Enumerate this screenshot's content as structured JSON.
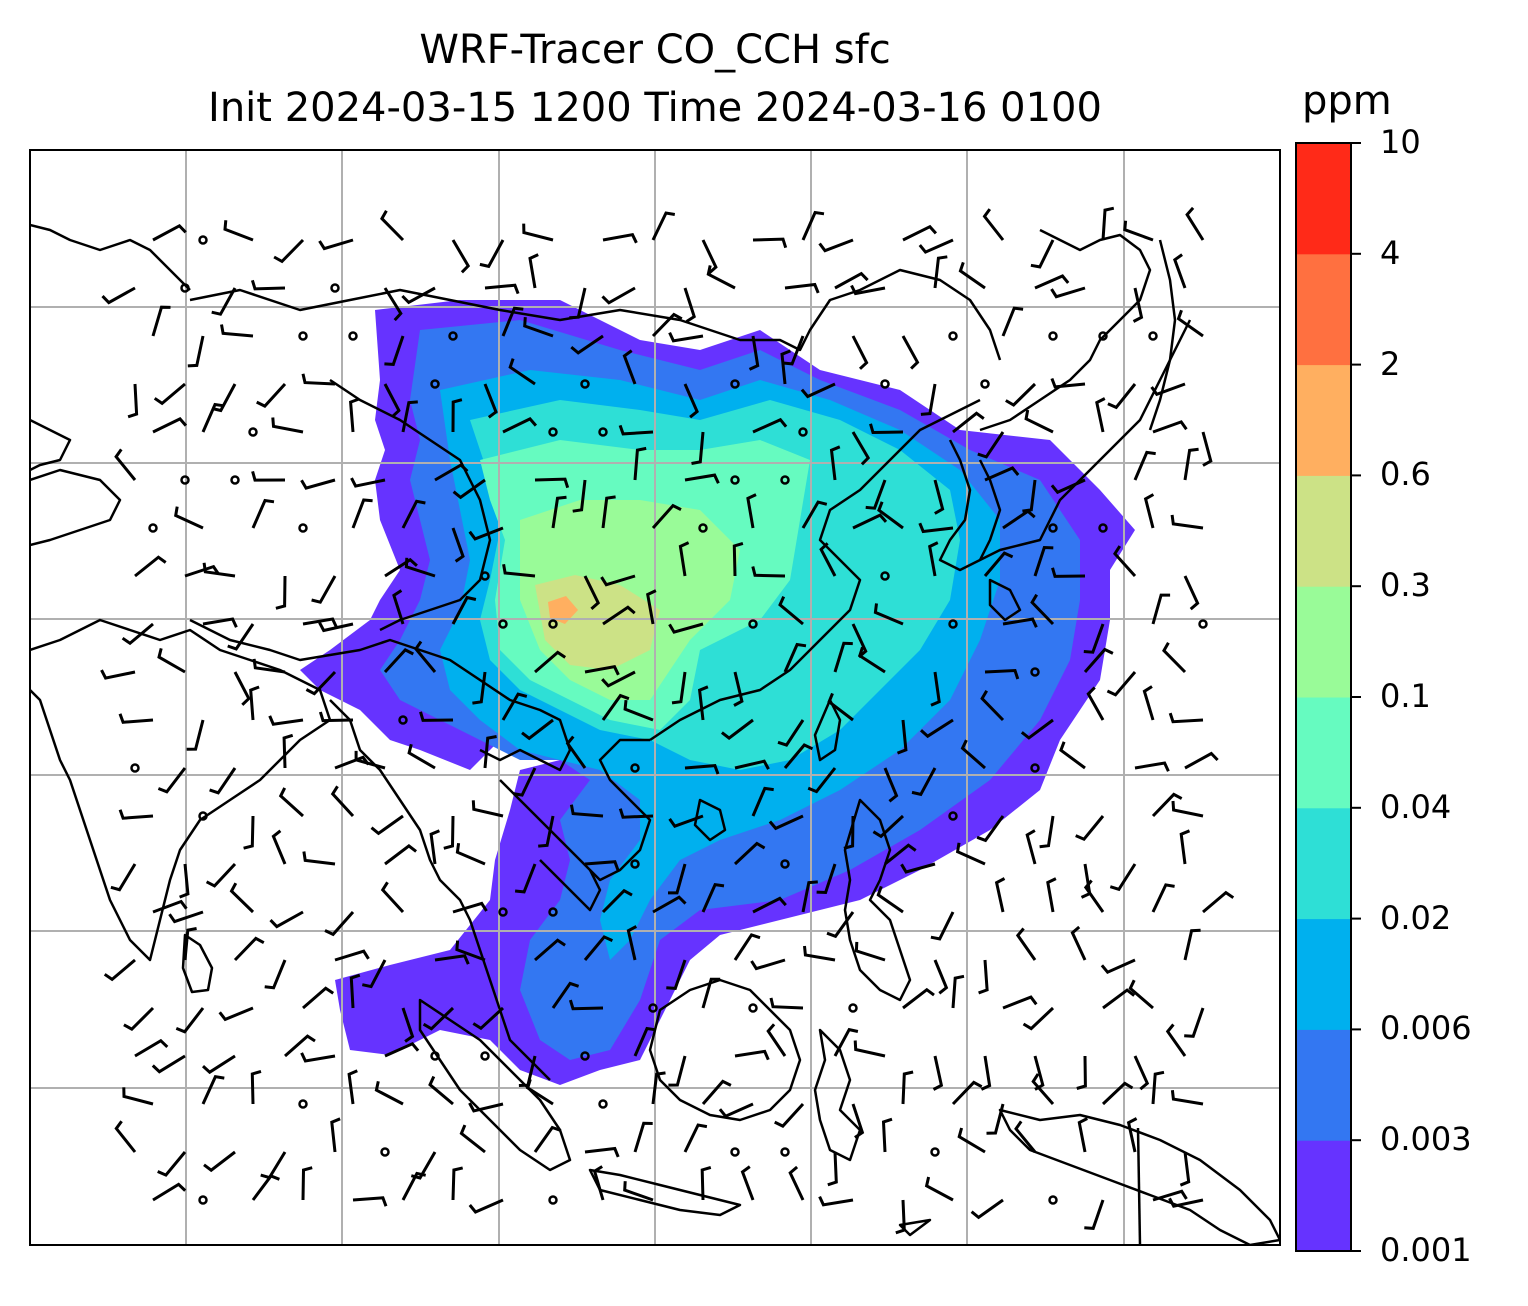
{
  "title": {
    "line1": "WRF-Tracer CO_CCH sfc",
    "line2": "Init 2024-03-15 1200 Time 2024-03-16 0100"
  },
  "colorbar": {
    "unit": "ppm",
    "levels": [
      "0.001",
      "0.003",
      "0.006",
      "0.02",
      "0.04",
      "0.1",
      "0.3",
      "0.6",
      "2",
      "4",
      "10"
    ],
    "colors": [
      "#6633ff",
      "#3377f2",
      "#00b0ee",
      "#2edfd6",
      "#66fbc0",
      "#99fb98",
      "#cce286",
      "#ffaf60",
      "#ff7040",
      "#ff2a18"
    ]
  },
  "map": {
    "gridlines": true,
    "coastline_color": "#000000",
    "grid_color": "#b0b0b0",
    "wind_barbs": true
  }
}
